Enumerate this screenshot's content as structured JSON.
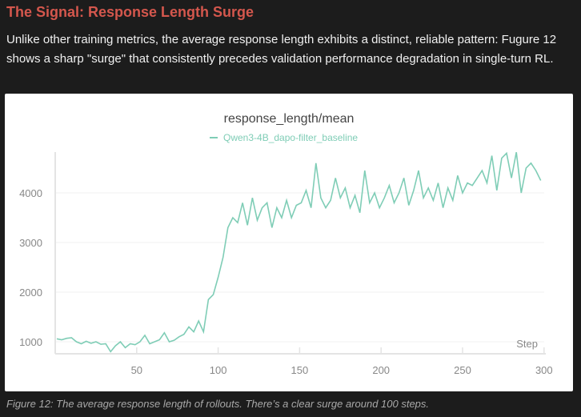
{
  "heading": "The Signal: Response Length Surge",
  "paragraph": "Unlike other training metrics, the average response length exhibits a distinct, reliable pattern: Fugure 12 shows a sharp \"surge\" that consistently precedes validation performance degradation in single-turn RL.",
  "caption": "Figure 12: The average response length of rollouts. There’s a clear surge around 100 steps.",
  "chart_data": {
    "type": "line",
    "title": "response_length/mean",
    "xlabel": "Step",
    "ylabel": "",
    "xlim": [
      0,
      300
    ],
    "ylim": [
      700,
      4900
    ],
    "xticks": [
      50,
      100,
      150,
      200,
      250,
      300
    ],
    "yticks": [
      1000,
      2000,
      3000,
      4000
    ],
    "grid": true,
    "legend": "top-center",
    "series": [
      {
        "name": "Qwen3-4B_dapo-filter_baseline",
        "color": "#7fcdb6",
        "x_start": 1,
        "x_step": 3,
        "values": [
          1060,
          1040,
          1070,
          1080,
          1000,
          960,
          1010,
          970,
          1000,
          950,
          960,
          800,
          920,
          1000,
          880,
          960,
          940,
          1000,
          1130,
          960,
          1000,
          1040,
          1180,
          1000,
          1030,
          1100,
          1150,
          1300,
          1200,
          1420,
          1200,
          1850,
          1950,
          2300,
          2700,
          3300,
          3500,
          3400,
          3800,
          3350,
          3900,
          3450,
          3700,
          3800,
          3300,
          3700,
          3500,
          3850,
          3500,
          3750,
          3800,
          4050,
          3700,
          4600,
          3900,
          3700,
          3850,
          4300,
          3900,
          4100,
          3700,
          3950,
          3600,
          4450,
          3800,
          4000,
          3700,
          3900,
          4150,
          3800,
          4000,
          4300,
          3750,
          4050,
          4450,
          3900,
          4100,
          3850,
          4200,
          3700,
          4100,
          3850,
          4350,
          4000,
          4200,
          4150,
          4300,
          4450,
          4200,
          4750,
          4050,
          4700,
          4800,
          4300,
          4820,
          4000,
          4500,
          4600,
          4450,
          4250
        ]
      }
    ]
  }
}
